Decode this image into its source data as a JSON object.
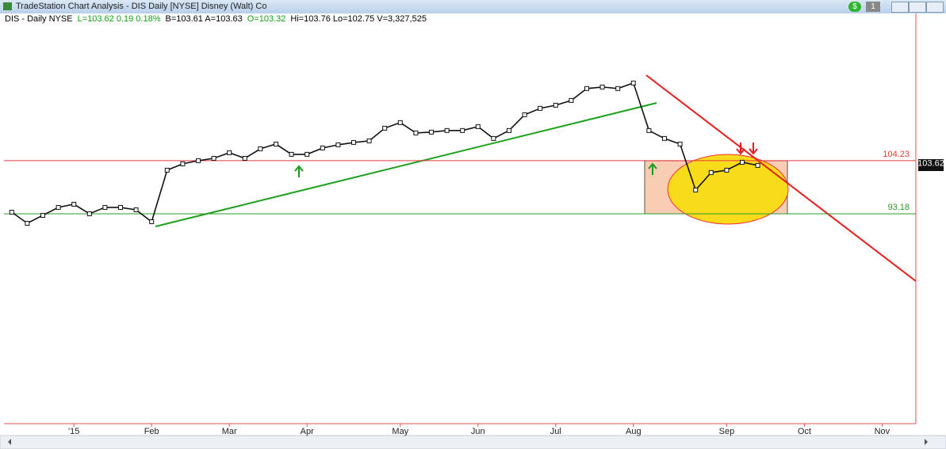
{
  "window": {
    "title": "TradeStation Chart Analysis - DIS Daily [NYSE] Disney (Walt) Co",
    "buttons": [
      "$",
      "1"
    ]
  },
  "chart_data": {
    "type": "line",
    "symbol_info": [
      {
        "text": "DIS - Daily NYSE",
        "color": "#000000"
      },
      {
        "text": "L=103.62 0.19 0.18%",
        "color": "#14a014"
      },
      {
        "text": "B=103.61 A=103.63",
        "color": "#000000"
      },
      {
        "text": "O=103.32",
        "color": "#14a014"
      },
      {
        "text": "Hi=103.76 Lo=102.75 V=3,327,525",
        "color": "#000000"
      }
    ],
    "categories": [
      null,
      null,
      null,
      null,
      "'15",
      null,
      null,
      null,
      null,
      "Feb",
      null,
      null,
      null,
      null,
      "Mar",
      null,
      null,
      null,
      null,
      "Apr",
      null,
      null,
      null,
      null,
      null,
      "May",
      null,
      null,
      null,
      null,
      "Jun",
      null,
      null,
      null,
      null,
      "Jul",
      null,
      null,
      null,
      null,
      "Aug",
      null,
      null,
      null,
      null,
      null,
      "Sep",
      null,
      null,
      null,
      null,
      "Oct",
      null,
      null,
      null,
      null,
      "Nov",
      null
    ],
    "values": [
      93.51,
      91.2,
      92.85,
      94.5,
      95.16,
      93.18,
      94.5,
      94.5,
      94.0,
      91.53,
      102.25,
      103.57,
      104.23,
      104.72,
      105.88,
      104.72,
      106.7,
      107.69,
      105.55,
      105.55,
      106.87,
      107.53,
      108.02,
      108.35,
      110.99,
      112.15,
      110.0,
      110.17,
      110.5,
      110.5,
      111.32,
      108.85,
      110.5,
      113.79,
      115.11,
      115.77,
      116.76,
      119.24,
      119.56,
      119.24,
      120.39,
      110.5,
      108.85,
      107.69,
      98.13,
      101.76,
      102.25,
      103.9,
      103.24,
      null,
      null,
      null,
      null,
      null,
      null,
      null,
      null,
      null
    ],
    "color": "#111111",
    "ylim": [
      49.5,
      134.7
    ],
    "levels": [
      {
        "value": 104.23,
        "color": "#e83a3a"
      },
      {
        "value": 93.18,
        "color": "#2a9d2a"
      }
    ],
    "last_price": 103.62
  }
}
